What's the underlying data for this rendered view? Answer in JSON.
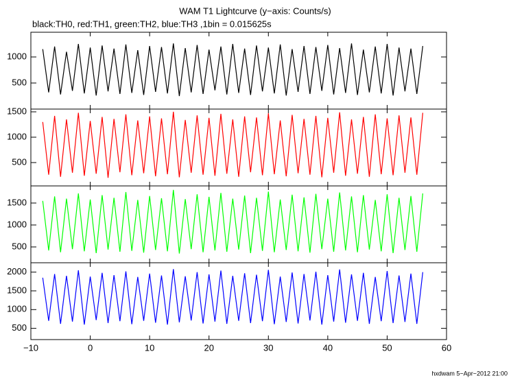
{
  "footer": "hxdwam  5−Apr−2012 21:00",
  "chart_data": {
    "type": "line",
    "title": "WAM T1 Lightcurve (y−axis: Counts/s)",
    "subtitle": "black:TH0, red:TH1, green:TH2, blue:TH3 ,1bin = 0.015625s",
    "xlim": [
      -10,
      60
    ],
    "xticks": [
      {
        "value": -10,
        "label": "−10"
      },
      0,
      10,
      20,
      30,
      40,
      50,
      60
    ],
    "x": [
      -8,
      -7,
      -6,
      -5,
      -4,
      -3,
      -2,
      -1,
      0,
      1,
      2,
      3,
      4,
      5,
      6,
      7,
      8,
      9,
      10,
      11,
      12,
      13,
      14,
      15,
      16,
      17,
      18,
      19,
      20,
      21,
      22,
      23,
      24,
      25,
      26,
      27,
      28,
      29,
      30,
      31,
      32,
      33,
      34,
      35,
      36,
      37,
      38,
      39,
      40,
      41,
      42,
      43,
      44,
      45,
      46,
      47,
      48,
      49,
      50,
      51,
      52,
      53,
      54,
      55,
      56
    ],
    "panels": [
      {
        "color": "#000000",
        "ylim": [
          0,
          1474
        ],
        "yticks": [
          500,
          1000
        ],
        "values": [
          1150,
          320,
          1200,
          280,
          1100,
          350,
          1250,
          300,
          1180,
          260,
          1220,
          340,
          1160,
          290,
          1240,
          310,
          1130,
          270,
          1210,
          330,
          1190,
          300,
          1260,
          250,
          1170,
          320,
          1230,
          290,
          1140,
          360,
          1200,
          280,
          1250,
          310,
          1160,
          270,
          1220,
          340,
          1180,
          300,
          1240,
          260,
          1150,
          330,
          1210,
          290,
          1190,
          350,
          1230,
          280,
          1170,
          310,
          1260,
          270,
          1140,
          320,
          1200,
          300,
          1250,
          260,
          1180,
          340,
          1160,
          290,
          1210
        ]
      },
      {
        "color": "#ff0000",
        "ylim": [
          40,
          1554
        ],
        "yticks": [
          500,
          1000,
          1500
        ],
        "values": [
          1300,
          260,
          1420,
          220,
          1350,
          300,
          1480,
          240,
          1320,
          280,
          1400,
          200,
          1360,
          310,
          1450,
          250,
          1330,
          290,
          1410,
          230,
          1370,
          270,
          1500,
          210,
          1340,
          300,
          1430,
          260,
          1380,
          240,
          1460,
          280,
          1350,
          220,
          1410,
          310,
          1390,
          250,
          1470,
          270,
          1330,
          230,
          1440,
          290,
          1360,
          260,
          1420,
          210,
          1380,
          300,
          1490,
          240,
          1350,
          280,
          1400,
          220,
          1450,
          270,
          1370,
          250,
          1430,
          300,
          1390,
          260,
          1480
        ]
      },
      {
        "color": "#00ff00",
        "ylim": [
          140,
          1890
        ],
        "yticks": [
          500,
          1000,
          1500
        ],
        "values": [
          1550,
          420,
          1650,
          380,
          1600,
          450,
          1720,
          400,
          1580,
          360,
          1680,
          440,
          1620,
          390,
          1750,
          410,
          1570,
          370,
          1660,
          430,
          1610,
          400,
          1800,
          350,
          1590,
          450,
          1700,
          380,
          1640,
          420,
          1730,
          390,
          1600,
          440,
          1670,
          360,
          1620,
          410,
          1760,
          380,
          1580,
          430,
          1690,
          400,
          1630,
          370,
          1710,
          450,
          1600,
          390,
          1740,
          420,
          1650,
          380,
          1680,
          440,
          1570,
          400,
          1700,
          360,
          1620,
          430,
          1660,
          390,
          1720
        ]
      },
      {
        "color": "#0000ff",
        "ylim": [
          200,
          2250
        ],
        "yticks": [
          500,
          1000,
          1500,
          2000
        ],
        "values": [
          1850,
          700,
          1950,
          620,
          1900,
          680,
          2050,
          600,
          1880,
          720,
          1980,
          640,
          1920,
          690,
          2020,
          610,
          1870,
          700,
          1960,
          650,
          1910,
          600,
          2080,
          660,
          1890,
          710,
          2000,
          630,
          1940,
          680,
          2040,
          620,
          1900,
          700,
          1970,
          640,
          1930,
          690,
          2060,
          610,
          1880,
          670,
          1990,
          630,
          1950,
          710,
          2010,
          600,
          1920,
          680,
          2070,
          650,
          1940,
          700,
          1980,
          620,
          1870,
          690,
          2030,
          640,
          1910,
          670,
          1960,
          620,
          2000
        ]
      }
    ]
  }
}
